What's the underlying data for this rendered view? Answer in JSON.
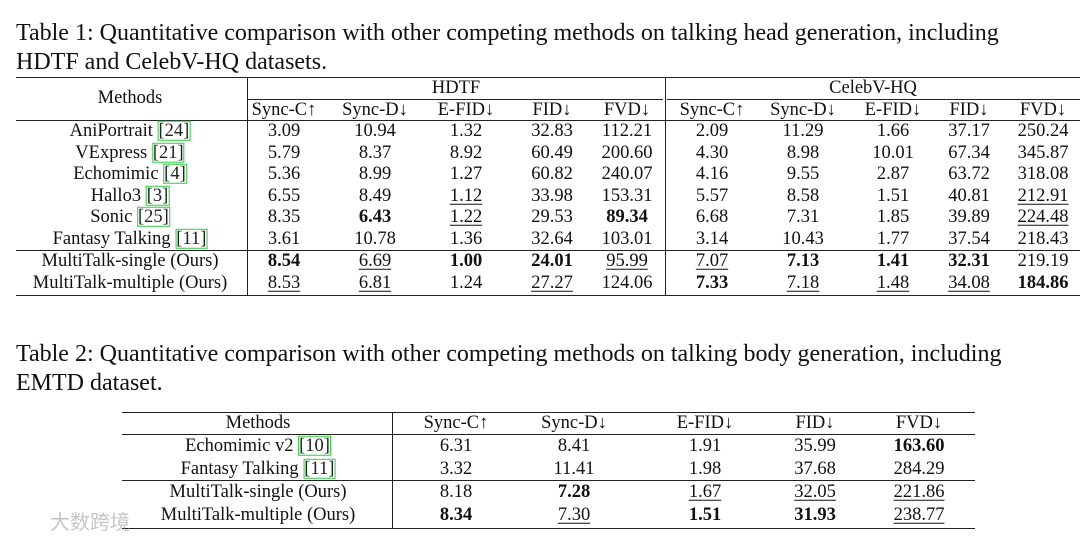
{
  "table1": {
    "caption": [
      "Table 1: Quantitative comparison with other competing methods on talking head generation, including",
      "HDTF and CelebV-HQ datasets."
    ],
    "methods_header": "Methods",
    "groups": [
      "HDTF",
      "CelebV-HQ"
    ],
    "columns": [
      "Sync-C↑",
      "Sync-D↓",
      "E-FID↓",
      "FID↓",
      "FVD↓",
      "Sync-C↑",
      "Sync-D↓",
      "E-FID↓",
      "FID↓",
      "FVD↓"
    ],
    "rows": [
      {
        "method": "AniPortrait",
        "ref": "[24]",
        "cells": [
          "3.09",
          "10.94",
          "1.32",
          "32.83",
          "112.21",
          "2.09",
          "11.29",
          "1.66",
          "37.17",
          "250.24"
        ],
        "bold": [],
        "underline": []
      },
      {
        "method": "VExpress",
        "ref": "[21]",
        "cells": [
          "5.79",
          "8.37",
          "8.92",
          "60.49",
          "200.60",
          "4.30",
          "8.98",
          "10.01",
          "67.34",
          "345.87"
        ],
        "bold": [],
        "underline": []
      },
      {
        "method": "Echomimic",
        "ref": "[4]",
        "cells": [
          "5.36",
          "8.99",
          "1.27",
          "60.82",
          "240.07",
          "4.16",
          "9.55",
          "2.87",
          "63.72",
          "318.08"
        ],
        "bold": [],
        "underline": []
      },
      {
        "method": "Hallo3",
        "ref": "[3]",
        "cells": [
          "6.55",
          "8.49",
          "1.12",
          "33.98",
          "153.31",
          "5.57",
          "8.58",
          "1.51",
          "40.81",
          "212.91"
        ],
        "bold": [],
        "underline": [
          2,
          9
        ]
      },
      {
        "method": "Sonic",
        "ref": "[25]",
        "cells": [
          "8.35",
          "6.43",
          "1.22",
          "29.53",
          "89.34",
          "6.68",
          "7.31",
          "1.85",
          "39.89",
          "224.48"
        ],
        "bold": [
          1,
          4
        ],
        "underline": [
          2,
          9
        ]
      },
      {
        "method": "Fantasy Talking",
        "ref": "[11]",
        "cells": [
          "3.61",
          "10.78",
          "1.36",
          "32.64",
          "103.01",
          "3.14",
          "10.43",
          "1.77",
          "37.54",
          "218.43"
        ],
        "bold": [],
        "underline": []
      },
      {
        "method": "MultiTalk-single (Ours)",
        "cells": [
          "8.54",
          "6.69",
          "1.00",
          "24.01",
          "95.99",
          "7.07",
          "7.13",
          "1.41",
          "32.31",
          "219.19"
        ],
        "bold": [
          0,
          2,
          3,
          6,
          7,
          8
        ],
        "underline": [
          1,
          4,
          5
        ]
      },
      {
        "method": "MultiTalk-multiple (Ours)",
        "cells": [
          "8.53",
          "6.81",
          "1.24",
          "27.27",
          "124.06",
          "7.33",
          "7.18",
          "1.48",
          "34.08",
          "184.86"
        ],
        "bold": [
          5,
          9
        ],
        "underline": [
          0,
          1,
          3,
          6,
          7,
          8
        ]
      }
    ]
  },
  "table2": {
    "caption": [
      "Table 2: Quantitative comparison with other competing methods on talking body generation, including",
      "EMTD dataset."
    ],
    "methods_header": "Methods",
    "columns": [
      "Sync-C↑",
      "Sync-D↓",
      "E-FID↓",
      "FID↓",
      "FVD↓"
    ],
    "rows": [
      {
        "method": "Echomimic v2",
        "ref": "[10]",
        "cells": [
          "6.31",
          "8.41",
          "1.91",
          "35.99",
          "163.60"
        ],
        "bold": [
          4
        ],
        "underline": []
      },
      {
        "method": "Fantasy Talking",
        "ref": "[11]",
        "cells": [
          "3.32",
          "11.41",
          "1.98",
          "37.68",
          "284.29"
        ],
        "bold": [],
        "underline": []
      },
      {
        "method": "MultiTalk-single (Ours)",
        "cells": [
          "8.18",
          "7.28",
          "1.67",
          "32.05",
          "221.86"
        ],
        "bold": [
          1
        ],
        "underline": [
          2,
          3,
          4
        ]
      },
      {
        "method": "MultiTalk-multiple (Ours)",
        "cells": [
          "8.34",
          "7.30",
          "1.51",
          "31.93",
          "238.77"
        ],
        "bold": [
          0,
          2,
          3
        ],
        "underline": [
          1,
          4
        ]
      }
    ]
  },
  "watermark": "大数跨境"
}
